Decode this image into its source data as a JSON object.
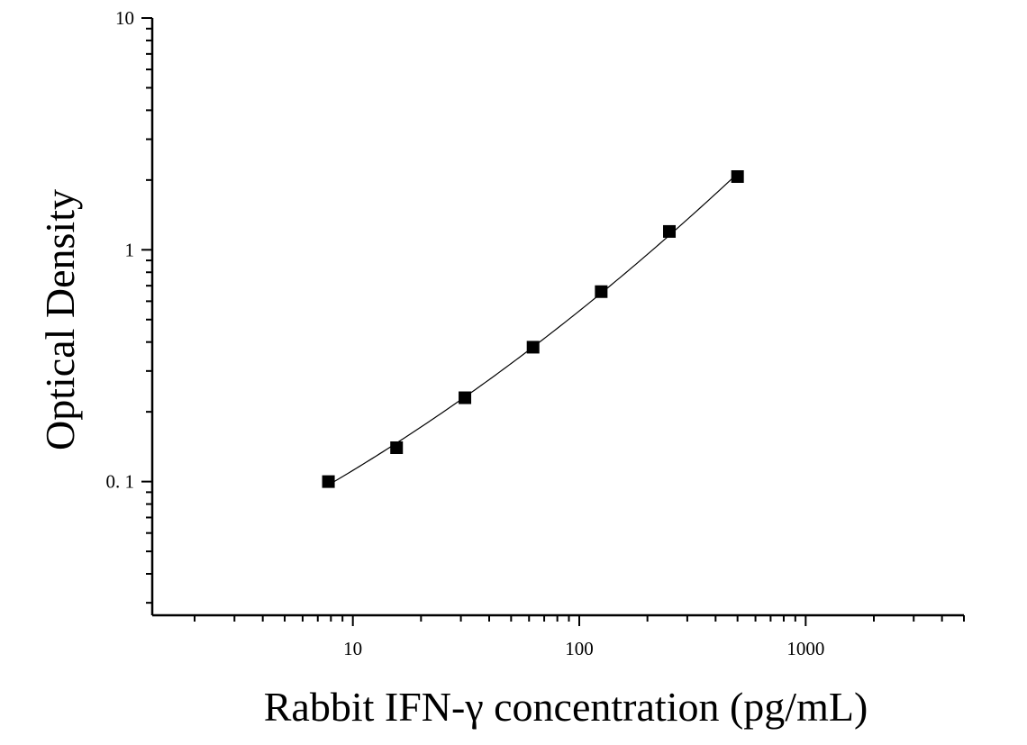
{
  "chart_data": {
    "type": "scatter",
    "title": "",
    "xlabel": "Rabbit IFN-γ concentration (pg/mL)",
    "ylabel": "Optical Density",
    "x_scale": "log",
    "y_scale": "log",
    "xlim": [
      1.3,
      5000
    ],
    "ylim": [
      0.0265,
      10
    ],
    "x_ticks": [
      {
        "value": 10,
        "label": "10"
      },
      {
        "value": 100,
        "label": "100"
      },
      {
        "value": 1000,
        "label": "1000"
      }
    ],
    "y_ticks": [
      {
        "value": 0.1,
        "label": "0. 1"
      },
      {
        "value": 1,
        "label": "1"
      },
      {
        "value": 10,
        "label": "10"
      }
    ],
    "grid": false,
    "legend": "none",
    "marker": "square",
    "series": [
      {
        "x": [
          7.8,
          15.6,
          31.25,
          62.5,
          125,
          250,
          500
        ],
        "y": [
          0.1,
          0.14,
          0.23,
          0.38,
          0.66,
          1.2,
          2.07
        ]
      }
    ],
    "fit_curve": true,
    "colors": {
      "marker": "#000000",
      "line": "#000000",
      "axis": "#000000"
    }
  }
}
